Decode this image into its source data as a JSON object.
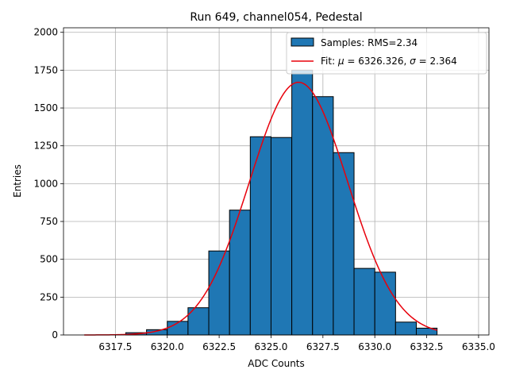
{
  "chart_data": {
    "type": "bar",
    "title": "Run 649, channel054, Pedestal",
    "xlabel": "ADC Counts",
    "ylabel": "Entries",
    "xlim": [
      6315.0,
      6335.5
    ],
    "ylim": [
      0,
      2030
    ],
    "grid": true,
    "legend_placement": "top-right",
    "x_ticks": [
      6317.5,
      6320.0,
      6322.5,
      6325.0,
      6327.5,
      6330.0,
      6332.5,
      6335.0
    ],
    "x_tick_labels": [
      "6317.5",
      "6320.0",
      "6322.5",
      "6325.0",
      "6327.5",
      "6330.0",
      "6332.5",
      "6335.0"
    ],
    "y_ticks": [
      0,
      250,
      500,
      750,
      1000,
      1250,
      1500,
      1750,
      2000
    ],
    "y_tick_labels": [
      "0",
      "250",
      "500",
      "750",
      "1000",
      "1250",
      "1500",
      "1750",
      "2000"
    ],
    "bin_width": 1,
    "bins": [
      {
        "x0": 6318,
        "count": 15
      },
      {
        "x0": 6319,
        "count": 35
      },
      {
        "x0": 6320,
        "count": 90
      },
      {
        "x0": 6321,
        "count": 180
      },
      {
        "x0": 6322,
        "count": 555
      },
      {
        "x0": 6323,
        "count": 825
      },
      {
        "x0": 6324,
        "count": 1310
      },
      {
        "x0": 6325,
        "count": 1305
      },
      {
        "x0": 6326,
        "count": 1750
      },
      {
        "x0": 6327,
        "count": 1575
      },
      {
        "x0": 6328,
        "count": 1205
      },
      {
        "x0": 6329,
        "count": 440
      },
      {
        "x0": 6330,
        "count": 415
      },
      {
        "x0": 6331,
        "count": 85
      },
      {
        "x0": 6332,
        "count": 45
      }
    ],
    "fit": {
      "mu": 6326.326,
      "sigma": 2.364,
      "amplitude": 1670,
      "x_range": [
        6316,
        6333
      ]
    },
    "series": [
      {
        "name": "Samples: RMS=2.34",
        "kind": "histogram",
        "color": "#1f77b4"
      },
      {
        "name_prefix": "Fit: ",
        "mu_symbol": "μ",
        "mu_text": " = 6326.326, ",
        "sigma_symbol": "σ",
        "sigma_text": " = 2.364",
        "kind": "line",
        "color": "#e8000b"
      }
    ]
  }
}
